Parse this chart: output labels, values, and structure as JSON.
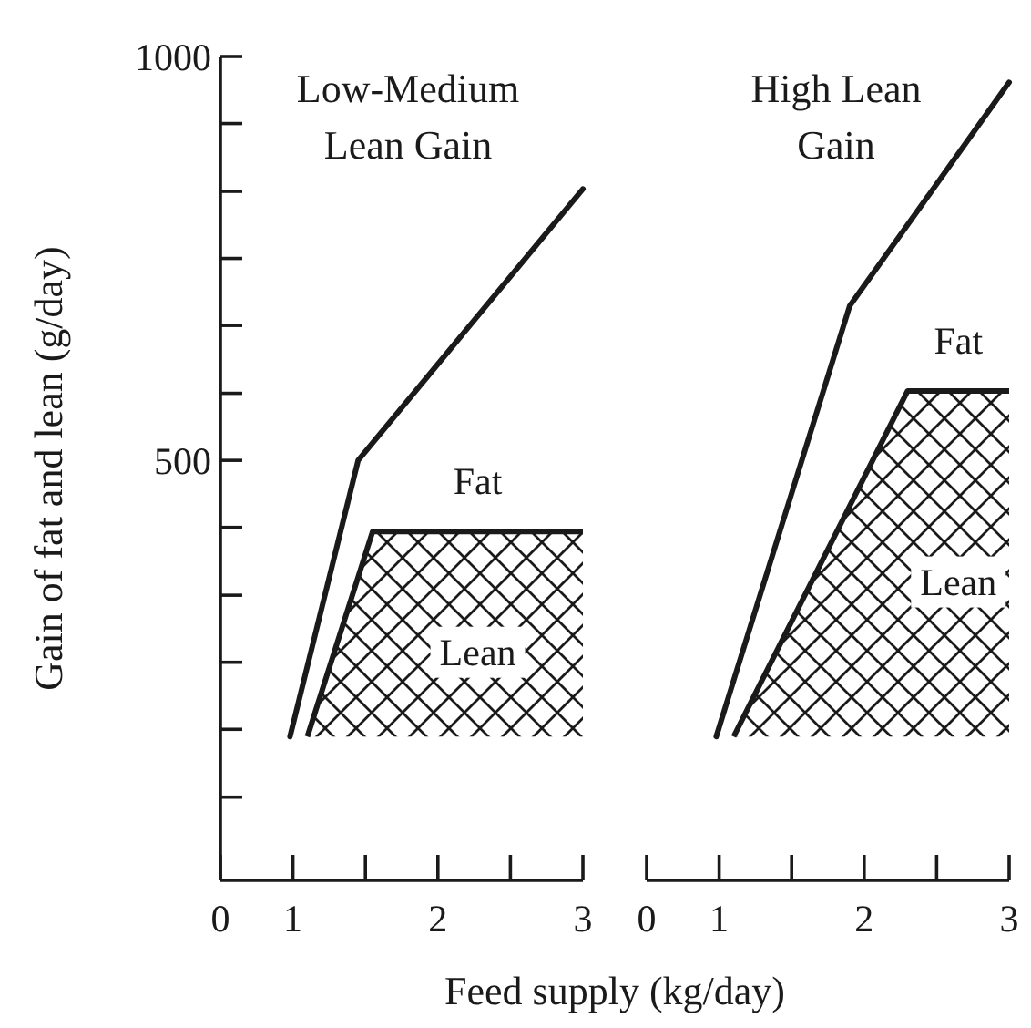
{
  "chart_data": [
    {
      "type": "line",
      "title": "Low-Medium Lean Gain",
      "xlabel": "Feed supply (kg/day)",
      "ylabel": "Gain of fat and lean (g/day)",
      "xlim": [
        0.5,
        3
      ],
      "xticks": [
        {
          "value": 0.5,
          "label": "0"
        },
        1,
        {
          "value": 1.5,
          "label": null
        },
        2,
        {
          "value": 2.5,
          "label": null
        },
        3
      ],
      "ylim": [
        -20,
        1000
      ],
      "yticks": [
        {
          "value": 83,
          "label": null
        },
        {
          "value": 167,
          "label": null
        },
        {
          "value": 250,
          "label": null
        },
        {
          "value": 333,
          "label": null
        },
        {
          "value": 417,
          "label": null
        },
        500,
        {
          "value": 583,
          "label": null
        },
        {
          "value": 667,
          "label": null
        },
        {
          "value": 750,
          "label": null
        },
        {
          "value": 833,
          "label": null
        },
        {
          "value": 917,
          "label": null
        },
        1000
      ],
      "series": [
        {
          "type": "line",
          "x": [
            0.98,
            1.45,
            3
          ],
          "values": [
            158,
            500,
            836
          ],
          "color": "#1a1a1a"
        },
        {
          "type": "area",
          "x": [
            1.1,
            1.55,
            3
          ],
          "values": [
            158,
            412,
            412
          ],
          "color": "#1a1a1a"
        }
      ],
      "annotations": [
        "Fat",
        "Lean"
      ]
    },
    {
      "type": "line",
      "title": "High Lean Gain",
      "xlim": [
        0.5,
        3
      ],
      "xticks": [
        {
          "value": 0.5,
          "label": "0"
        },
        1,
        {
          "value": 1.5,
          "label": null
        },
        2,
        {
          "value": 2.5,
          "label": null
        },
        3
      ],
      "ylim": [
        -20,
        1000
      ],
      "tick_labels": "x",
      "series": [
        {
          "type": "line",
          "x": [
            0.98,
            1.9,
            3
          ],
          "values": [
            158,
            691,
            968
          ],
          "color": "#1a1a1a"
        },
        {
          "type": "area",
          "x": [
            1.1,
            2.3,
            3
          ],
          "values": [
            158,
            586,
            586
          ],
          "color": "#1a1a1a"
        }
      ],
      "annotations": [
        "Fat",
        "Lean"
      ]
    }
  ]
}
